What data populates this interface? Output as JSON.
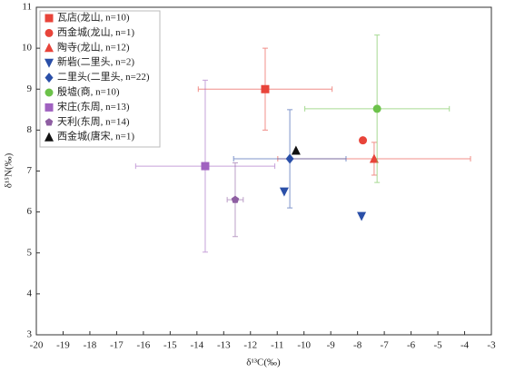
{
  "chart_data": {
    "type": "scatter",
    "xlabel": "δ¹³C(‰)",
    "ylabel": "δ¹⁵N(‰)",
    "xlim": [
      -20,
      -3
    ],
    "xticks": [
      -20,
      -19,
      -18,
      -17,
      -16,
      -15,
      -14,
      -13,
      -12,
      -11,
      -10,
      -9,
      -8,
      -7,
      -6,
      -5,
      -4,
      -3
    ],
    "ylim": [
      3,
      11
    ],
    "yticks": [
      3,
      4,
      5,
      6,
      7,
      8,
      9,
      10,
      11
    ],
    "legend": "upper left",
    "series": [
      {
        "name": "瓦店(龙山, n=10)",
        "color": "#e8443a",
        "marker": "square",
        "x": [
          -11.45
        ],
        "values": [
          9.0
        ],
        "xerr": [
          2.5
        ],
        "yerr": [
          1.0
        ]
      },
      {
        "name": "西金城(龙山, n=1)",
        "color": "#e8443a",
        "marker": "circle",
        "x": [
          -7.8
        ],
        "values": [
          7.75
        ],
        "xerr": [
          null
        ],
        "yerr": [
          null
        ]
      },
      {
        "name": "陶寺(龙山, n=12)",
        "color": "#e8443a",
        "marker": "triangle-up",
        "x": [
          -7.38
        ],
        "values": [
          7.3
        ],
        "xerr": [
          3.6
        ],
        "yerr": [
          0.4
        ]
      },
      {
        "name": "新砦(二里头, n=2)",
        "color": "#2a4fa8",
        "marker": "triangle-down",
        "x": [
          -10.74,
          -7.85
        ],
        "values": [
          6.5,
          5.9
        ],
        "xerr": [
          null,
          null
        ],
        "yerr": [
          null,
          null
        ]
      },
      {
        "name": "二里头(二里头, n=22)",
        "color": "#2a4fa8",
        "marker": "diamond",
        "x": [
          -10.53
        ],
        "values": [
          7.3
        ],
        "xerr": [
          2.1
        ],
        "yerr": [
          1.2
        ]
      },
      {
        "name": "殷墟(商, n=10)",
        "color": "#6cc24a",
        "marker": "circle",
        "x": [
          -7.27
        ],
        "values": [
          8.52
        ],
        "xerr": [
          2.7
        ],
        "yerr": [
          1.8
        ]
      },
      {
        "name": "宋庄(东周, n=13)",
        "color": "#a062c0",
        "marker": "square",
        "x": [
          -13.69
        ],
        "values": [
          7.12
        ],
        "xerr": [
          2.6
        ],
        "yerr": [
          2.1
        ]
      },
      {
        "name": "天利(东周, n=14)",
        "color": "#8e5ea2",
        "marker": "pentagon",
        "x": [
          -12.57
        ],
        "values": [
          6.3
        ],
        "xerr": [
          0.3
        ],
        "yerr": [
          0.9
        ]
      },
      {
        "name": "西金城(唐宋, n=1)",
        "color": "#111111",
        "marker": "triangle-up",
        "x": [
          -10.3
        ],
        "values": [
          7.5
        ],
        "xerr": [
          null
        ],
        "yerr": [
          null
        ]
      }
    ]
  }
}
